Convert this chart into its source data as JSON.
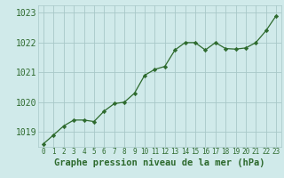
{
  "x": [
    0,
    1,
    2,
    3,
    4,
    5,
    6,
    7,
    8,
    9,
    10,
    11,
    12,
    13,
    14,
    15,
    16,
    17,
    18,
    19,
    20,
    21,
    22,
    23
  ],
  "y": [
    1018.6,
    1018.9,
    1019.2,
    1019.4,
    1019.4,
    1019.35,
    1019.7,
    1019.95,
    1020.0,
    1020.3,
    1020.9,
    1021.1,
    1021.2,
    1021.75,
    1022.0,
    1022.0,
    1021.75,
    1022.0,
    1021.8,
    1021.78,
    1021.82,
    1022.0,
    1022.4,
    1022.9
  ],
  "ylim": [
    1018.5,
    1023.25
  ],
  "yticks": [
    1019,
    1020,
    1021,
    1022,
    1023
  ],
  "xticks": [
    0,
    1,
    2,
    3,
    4,
    5,
    6,
    7,
    8,
    9,
    10,
    11,
    12,
    13,
    14,
    15,
    16,
    17,
    18,
    19,
    20,
    21,
    22,
    23
  ],
  "line_color": "#2d6a2d",
  "marker_color": "#2d6a2d",
  "bg_color": "#d0eaea",
  "grid_color": "#a8c8c8",
  "axis_label_color": "#2d6a2d",
  "tick_color": "#2d6a2d",
  "xlabel": "Graphe pression niveau de la mer (hPa)",
  "xlabel_fontsize": 7.5,
  "ytick_fontsize": 7,
  "xtick_fontsize": 5.5
}
